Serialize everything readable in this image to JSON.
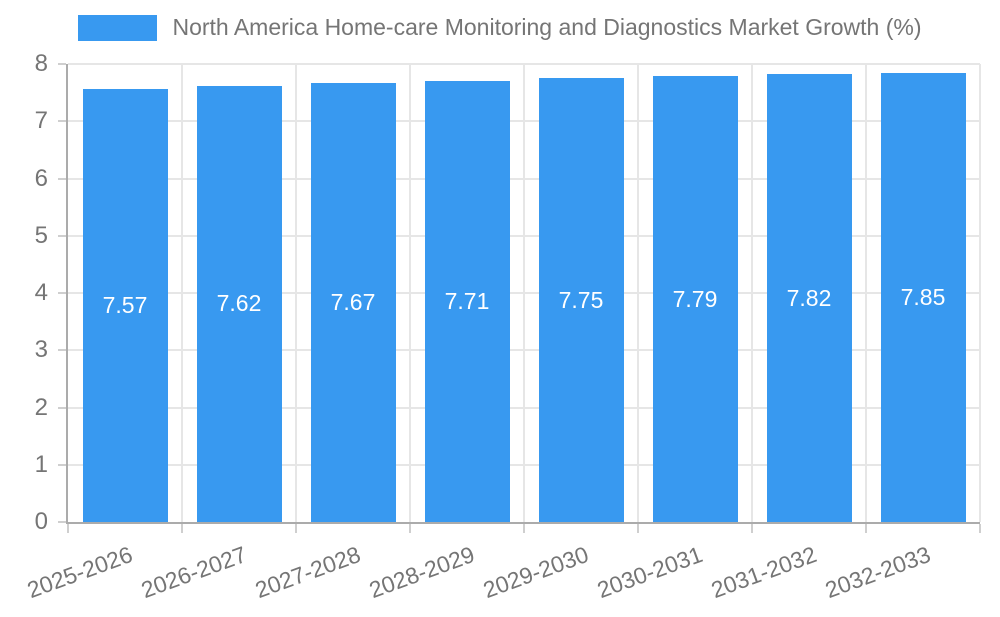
{
  "chart_data": {
    "type": "bar",
    "title": "North America Home-care Monitoring and Diagnostics Market Growth (%)",
    "legend": {
      "label": "North America Home-care Monitoring and Diagnostics Market Growth (%)",
      "position": "top"
    },
    "categories": [
      "2025-2026",
      "2026-2027",
      "2027-2028",
      "2028-2029",
      "2029-2030",
      "2030-2031",
      "2031-2032",
      "2032-2033"
    ],
    "values": [
      7.57,
      7.62,
      7.67,
      7.71,
      7.75,
      7.79,
      7.82,
      7.85
    ],
    "data_labels": [
      "7.57",
      "7.62",
      "7.67",
      "7.71",
      "7.75",
      "7.79",
      "7.82",
      "7.85"
    ],
    "xlabel": "",
    "ylabel": "",
    "ylim": [
      0,
      8
    ],
    "yticks": [
      0,
      1,
      2,
      3,
      4,
      5,
      6,
      7,
      8
    ],
    "grid": true,
    "colors": {
      "bar": "#3899F0",
      "data_label": "#FFFFFF",
      "grid": "#E6E6E6",
      "axis": "#ABABAB",
      "tick": "#CFCFCF",
      "text": "#757575",
      "background": "#FFFFFF"
    }
  }
}
